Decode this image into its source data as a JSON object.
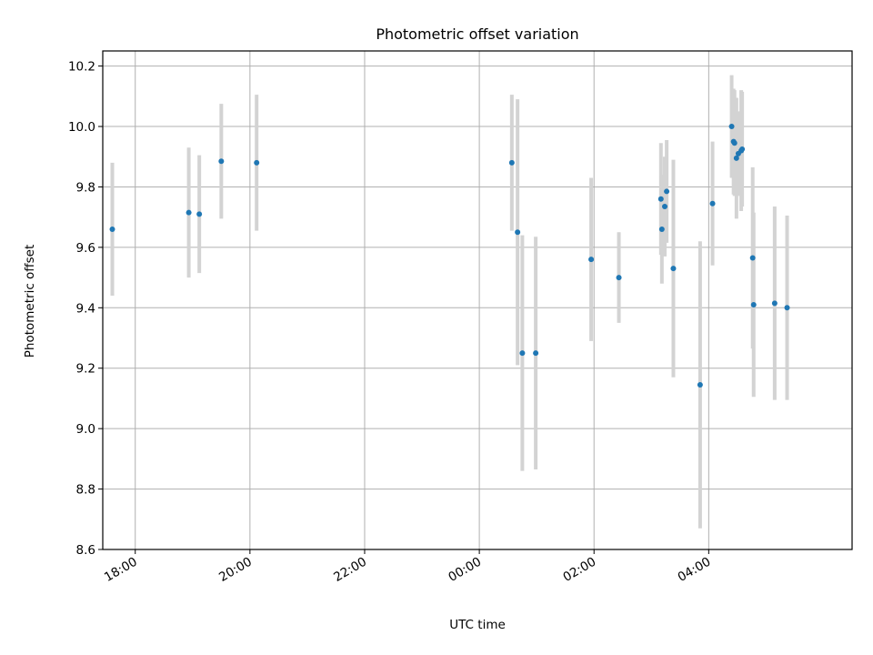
{
  "chart_data": {
    "type": "scatter",
    "title": "Photometric offset variation",
    "xlabel": "UTC time",
    "ylabel": "Photometric offset",
    "xlim": [
      "17:26",
      "06:30"
    ],
    "ylim": [
      8.6,
      10.25
    ],
    "x_ticks": [
      "18:00",
      "20:00",
      "22:00",
      "00:00",
      "02:00",
      "04:00"
    ],
    "y_ticks": [
      "8.6",
      "8.8",
      "9.0",
      "9.2",
      "9.4",
      "9.6",
      "9.8",
      "10.0",
      "10.2"
    ],
    "grid": true,
    "colors": {
      "point": "#1f77b4",
      "errorbar": "#d3d3d3",
      "grid": "#b0b0b0"
    },
    "points": [
      {
        "x": "17:36",
        "y": 9.66,
        "err": 0.22
      },
      {
        "x": "18:56",
        "y": 9.715,
        "err": 0.215
      },
      {
        "x": "19:07",
        "y": 9.71,
        "err": 0.195
      },
      {
        "x": "19:30",
        "y": 9.885,
        "err": 0.19
      },
      {
        "x": "20:07",
        "y": 9.88,
        "err": 0.225
      },
      {
        "x": "00:34",
        "y": 9.88,
        "err": 0.225
      },
      {
        "x": "00:40",
        "y": 9.65,
        "err": 0.44
      },
      {
        "x": "00:45",
        "y": 9.25,
        "err": 0.39
      },
      {
        "x": "00:59",
        "y": 9.25,
        "err": 0.385
      },
      {
        "x": "01:57",
        "y": 9.56,
        "err": 0.27
      },
      {
        "x": "02:26",
        "y": 9.5,
        "err": 0.15
      },
      {
        "x": "03:10",
        "y": 9.76,
        "err": 0.185
      },
      {
        "x": "03:11",
        "y": 9.66,
        "err": 0.18
      },
      {
        "x": "03:14",
        "y": 9.735,
        "err": 0.165
      },
      {
        "x": "03:16",
        "y": 9.785,
        "err": 0.17
      },
      {
        "x": "03:23",
        "y": 9.53,
        "err": 0.36
      },
      {
        "x": "03:51",
        "y": 9.145,
        "err": 0.475
      },
      {
        "x": "04:04",
        "y": 9.745,
        "err": 0.205
      },
      {
        "x": "04:24",
        "y": 10.0,
        "err": 0.17
      },
      {
        "x": "04:26",
        "y": 9.95,
        "err": 0.175
      },
      {
        "x": "04:27",
        "y": 9.945,
        "err": 0.175
      },
      {
        "x": "04:29",
        "y": 9.895,
        "err": 0.2
      },
      {
        "x": "04:31",
        "y": 9.91,
        "err": 0.14
      },
      {
        "x": "04:34",
        "y": 9.92,
        "err": 0.2
      },
      {
        "x": "04:35",
        "y": 9.925,
        "err": 0.19
      },
      {
        "x": "04:46",
        "y": 9.565,
        "err": 0.3
      },
      {
        "x": "04:47",
        "y": 9.41,
        "err": 0.305
      },
      {
        "x": "05:09",
        "y": 9.415,
        "err": 0.32
      },
      {
        "x": "05:22",
        "y": 9.4,
        "err": 0.305
      }
    ]
  }
}
